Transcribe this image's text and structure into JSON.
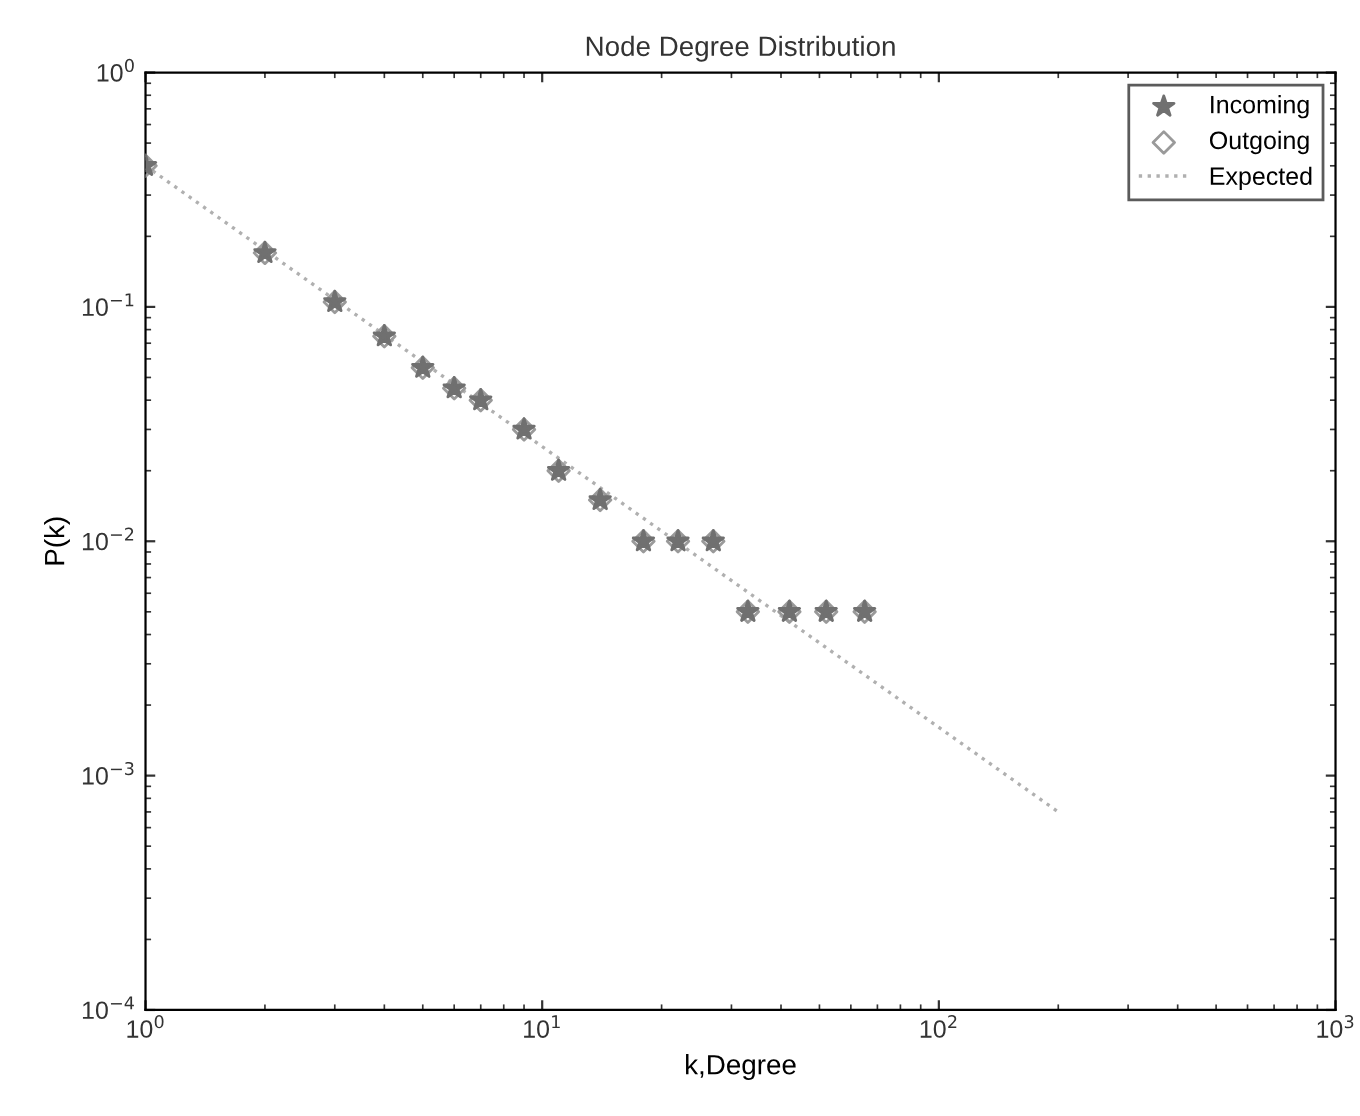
{
  "chart_data": {
    "type": "scatter",
    "title": "Node Degree Distribution",
    "xlabel": "k,Degree",
    "ylabel": "P(k)",
    "log": "xy",
    "grid": false,
    "legend": "top right",
    "xlim": [
      1,
      1000
    ],
    "ylim": [
      0.0001,
      1
    ],
    "xticks": [
      {
        "value": 1,
        "label": "10$^{0}$"
      },
      {
        "value": 10,
        "label": "10$^{1}$"
      },
      {
        "value": 100,
        "label": "10$^{2}$"
      },
      {
        "value": 1000,
        "label": "10$^{3}$"
      }
    ],
    "yticks": [
      {
        "value": 0.0001,
        "label": "10$^{−4}$"
      },
      {
        "value": 0.001,
        "label": "10$^{−3}$"
      },
      {
        "value": 0.01,
        "label": "10$^{−2}$"
      },
      {
        "value": 0.1,
        "label": "10$^{−1}$"
      },
      {
        "value": 1,
        "label": "10$^{0}$"
      }
    ],
    "x": [
      1,
      2,
      3,
      4,
      5,
      6,
      7,
      9,
      11,
      14,
      18,
      22,
      27,
      33,
      42,
      52,
      65
    ],
    "series": [
      {
        "name": "Incoming",
        "marker": "star",
        "color": "#707070",
        "values": [
          0.4,
          0.17,
          0.105,
          0.075,
          0.055,
          0.045,
          0.04,
          0.03,
          0.02,
          0.015,
          0.01,
          0.01,
          0.01,
          0.005,
          0.005,
          0.005,
          0.005
        ]
      },
      {
        "name": "Outgoing",
        "marker": "diamond",
        "color": "#9a9a9a",
        "values": [
          0.4,
          0.17,
          0.105,
          0.075,
          0.055,
          0.045,
          0.04,
          0.03,
          0.02,
          0.015,
          0.01,
          0.01,
          0.01,
          0.005,
          0.005,
          0.005,
          0.005
        ]
      },
      {
        "name": "Expected",
        "type": "line",
        "line_style": "dotted",
        "color": "#b0b0b0",
        "x": [
          1,
          200
        ],
        "values": [
          0.4,
          0.0007
        ]
      }
    ]
  }
}
